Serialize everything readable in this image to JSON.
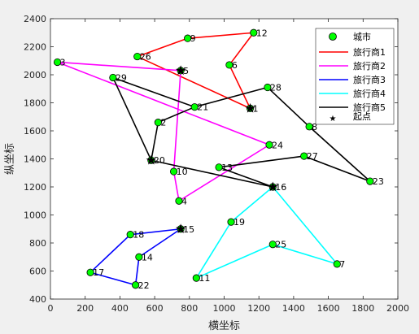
{
  "chart_data": {
    "type": "scatter",
    "xlabel": "横坐标",
    "ylabel": "纵坐标",
    "xlim": [
      0,
      2000
    ],
    "ylim": [
      400,
      2400
    ],
    "xticks": [
      0,
      200,
      400,
      600,
      800,
      1000,
      1200,
      1400,
      1600,
      1800,
      2000
    ],
    "yticks": [
      400,
      600,
      800,
      1000,
      1200,
      1400,
      1600,
      1800,
      2000,
      2200,
      2400
    ],
    "grid": false,
    "legend_position": "top-right",
    "cities": [
      {
        "id": "1",
        "x": 1150,
        "y": 1760
      },
      {
        "id": "2",
        "x": 620,
        "y": 1660
      },
      {
        "id": "3",
        "x": 40,
        "y": 2090
      },
      {
        "id": "4",
        "x": 740,
        "y": 1100
      },
      {
        "id": "5",
        "x": 750,
        "y": 2030
      },
      {
        "id": "6",
        "x": 1030,
        "y": 2070
      },
      {
        "id": "7",
        "x": 1650,
        "y": 650
      },
      {
        "id": "8",
        "x": 1490,
        "y": 1630
      },
      {
        "id": "9",
        "x": 790,
        "y": 2260
      },
      {
        "id": "10",
        "x": 710,
        "y": 1310
      },
      {
        "id": "11",
        "x": 840,
        "y": 550
      },
      {
        "id": "12",
        "x": 1170,
        "y": 2300
      },
      {
        "id": "13",
        "x": 970,
        "y": 1340
      },
      {
        "id": "14",
        "x": 510,
        "y": 700
      },
      {
        "id": "15",
        "x": 750,
        "y": 900
      },
      {
        "id": "16",
        "x": 1280,
        "y": 1200
      },
      {
        "id": "17",
        "x": 230,
        "y": 590
      },
      {
        "id": "18",
        "x": 460,
        "y": 860
      },
      {
        "id": "19",
        "x": 1040,
        "y": 950
      },
      {
        "id": "20",
        "x": 580,
        "y": 1390
      },
      {
        "id": "21",
        "x": 830,
        "y": 1770
      },
      {
        "id": "22",
        "x": 490,
        "y": 500
      },
      {
        "id": "23",
        "x": 1840,
        "y": 1240
      },
      {
        "id": "24",
        "x": 1260,
        "y": 1500
      },
      {
        "id": "25",
        "x": 1280,
        "y": 790
      },
      {
        "id": "26",
        "x": 500,
        "y": 2130
      },
      {
        "id": "27",
        "x": 1460,
        "y": 1420
      },
      {
        "id": "28",
        "x": 1250,
        "y": 1910
      },
      {
        "id": "29",
        "x": 360,
        "y": 1980
      }
    ],
    "routes": [
      {
        "name": "旅行商1",
        "color": "#ff0000",
        "cities": [
          "1",
          "26",
          "9",
          "12",
          "6",
          "1"
        ]
      },
      {
        "name": "旅行商2",
        "color": "#ff00ff",
        "cities": [
          "5",
          "3",
          "24",
          "4",
          "10",
          "5"
        ]
      },
      {
        "name": "旅行商3",
        "color": "#0000ff",
        "cities": [
          "15",
          "18",
          "17",
          "22",
          "14",
          "15"
        ]
      },
      {
        "name": "旅行商4",
        "color": "#00ffff",
        "cities": [
          "16",
          "19",
          "11",
          "25",
          "7",
          "16"
        ]
      },
      {
        "name": "旅行商5",
        "color": "#000000",
        "cities": [
          "20",
          "29",
          "21",
          "28",
          "8",
          "23",
          "27",
          "13",
          "16",
          "20",
          "2",
          "21"
        ]
      }
    ],
    "start_points": [
      "1",
      "5",
      "15",
      "16",
      "20"
    ],
    "legend": {
      "city_label": "城市",
      "start_label": "起点",
      "city_color": "#00ff00"
    }
  }
}
